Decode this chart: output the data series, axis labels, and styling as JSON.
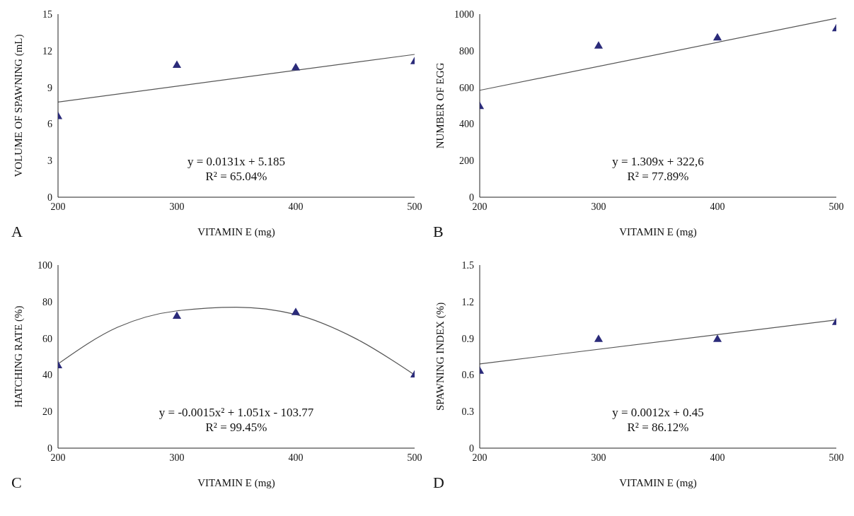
{
  "chart_data": [
    {
      "type": "scatter",
      "xlabel": "VITAMIN E (mg)",
      "ylabel": "VOLUME OF SPAWNING (mL)",
      "x": [
        200,
        300,
        400,
        500
      ],
      "xlim": [
        200,
        500
      ],
      "xticks": [
        200,
        300,
        400,
        500
      ],
      "ylim": [
        0,
        15
      ],
      "yticks": [
        0,
        3,
        6,
        9,
        12,
        15
      ],
      "annotations": [
        "y = 0.0131x + 5.185",
        "R² = 65.04%",
        "A"
      ],
      "series": [
        {
          "marker": "triangle",
          "color": "#2b2b7a",
          "values": [
            6.6,
            10.8,
            10.6,
            11.1
          ]
        },
        {
          "type": "line",
          "marker": "none",
          "color": "#555555",
          "x": [
            200,
            500
          ],
          "values": [
            7.8,
            11.7
          ]
        }
      ]
    },
    {
      "type": "scatter",
      "xlabel": "VITAMIN E (mg)",
      "ylabel": "NUMBER OF EGG",
      "x": [
        200,
        300,
        400,
        500
      ],
      "xlim": [
        200,
        500
      ],
      "xticks": [
        200,
        300,
        400,
        500
      ],
      "ylim": [
        0,
        1000
      ],
      "yticks": [
        0,
        200,
        400,
        600,
        800,
        1000
      ],
      "annotations": [
        "y = 1.309x + 322,6",
        "R² = 77.89%",
        "B"
      ],
      "series": [
        {
          "marker": "triangle",
          "color": "#2b2b7a",
          "values": [
            495,
            825,
            870,
            920
          ]
        },
        {
          "type": "line",
          "marker": "none",
          "color": "#555555",
          "x": [
            200,
            500
          ],
          "values": [
            584,
            977
          ]
        }
      ]
    },
    {
      "type": "scatter",
      "xlabel": "VITAMIN E (mg)",
      "ylabel": "HATCHING RATE (%)",
      "x": [
        200,
        300,
        400,
        500
      ],
      "xlim": [
        200,
        500
      ],
      "xticks": [
        200,
        300,
        400,
        500
      ],
      "ylim": [
        0,
        100
      ],
      "yticks": [
        0,
        20,
        40,
        60,
        80,
        100
      ],
      "annotations": [
        "y = -0.0015x² + 1.051x - 103.77",
        "R² = 99.45%",
        "C"
      ],
      "series": [
        {
          "marker": "triangle",
          "color": "#2b2b7a",
          "values": [
            45,
            72,
            74,
            40
          ]
        },
        {
          "type": "line",
          "marker": "none",
          "color": "#555555",
          "x": [
            200,
            250,
            300,
            350,
            400,
            450,
            500
          ],
          "values": [
            46,
            66,
            75,
            77,
            73,
            60,
            40
          ]
        }
      ]
    },
    {
      "type": "scatter",
      "xlabel": "VITAMIN E (mg)",
      "ylabel": "SPAWNING INDEX (%)",
      "x": [
        200,
        300,
        400,
        500
      ],
      "xlim": [
        200,
        500
      ],
      "xticks": [
        200,
        300,
        400,
        500
      ],
      "ylim": [
        0,
        1.5
      ],
      "yticks": [
        0,
        0.3,
        0.6,
        0.9,
        1.2,
        1.5
      ],
      "annotations": [
        "y = 0.0012x + 0.45",
        "R² = 86.12%",
        "D"
      ],
      "series": [
        {
          "marker": "triangle",
          "color": "#2b2b7a",
          "values": [
            0.63,
            0.89,
            0.89,
            1.03
          ]
        },
        {
          "type": "line",
          "marker": "none",
          "color": "#555555",
          "x": [
            200,
            500
          ],
          "values": [
            0.69,
            1.05
          ]
        }
      ]
    }
  ]
}
